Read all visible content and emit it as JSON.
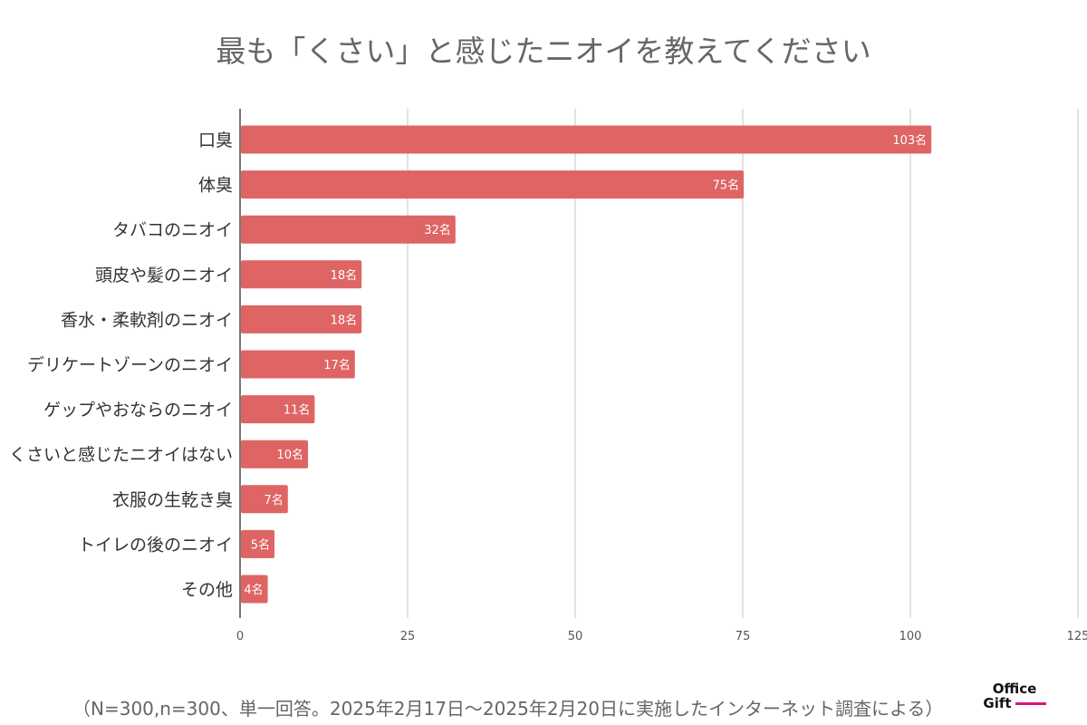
{
  "chart_data": {
    "type": "bar",
    "orientation": "horizontal",
    "title": "最も「くさい」と感じたニオイを教えてください",
    "categories": [
      "口臭",
      "体臭",
      "タバコのニオイ",
      "頭皮や髪のニオイ",
      "香水・柔軟剤のニオイ",
      "デリケートゾーンのニオイ",
      "ゲップやおならのニオイ",
      "くさいと感じたニオイはない",
      "衣服の生乾き臭",
      "トイレの後のニオイ",
      "その他"
    ],
    "values": [
      103,
      75,
      32,
      18,
      18,
      17,
      11,
      10,
      7,
      5,
      4
    ],
    "value_labels": [
      "103名",
      "75名",
      "32名",
      "18名",
      "18名",
      "17名",
      "11名",
      "10名",
      "7名",
      "5名",
      "4名"
    ],
    "xlim": [
      0,
      125
    ],
    "xticks": [
      0,
      25,
      50,
      75,
      100,
      125
    ],
    "xtick_labels": [
      "0",
      "25",
      "50",
      "75",
      "100",
      "125"
    ],
    "grid": true,
    "bar_color": "#df6464"
  },
  "footer_note": "（N=300,n=300、単一回答。2025年2月17日～2025年2月20日に実施したインターネット調査による）",
  "logo": {
    "line1": "Office",
    "line2": "Gift"
  }
}
